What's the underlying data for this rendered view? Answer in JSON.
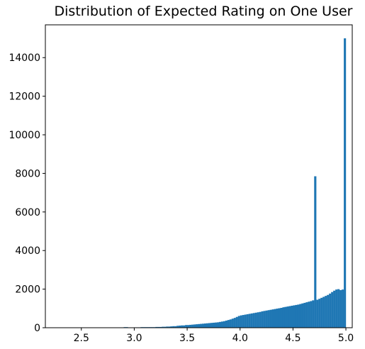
{
  "chart_data": {
    "type": "bar",
    "title": "Distribution of Expected Rating on One User",
    "xlabel": "",
    "ylabel": "",
    "xlim": [
      2.16,
      5.06
    ],
    "ylim": [
      0,
      15700
    ],
    "x_ticks": [
      2.5,
      3.0,
      3.5,
      4.0,
      4.5,
      5.0
    ],
    "x_tick_labels": [
      "2.5",
      "3.0",
      "3.5",
      "4.0",
      "4.5",
      "5.0"
    ],
    "y_ticks": [
      0,
      2000,
      4000,
      6000,
      8000,
      10000,
      12000,
      14000
    ],
    "y_tick_labels": [
      "0",
      "2000",
      "4000",
      "6000",
      "8000",
      "10000",
      "12000",
      "14000"
    ],
    "bar_color": "#1f77b4",
    "grid": false,
    "bin_width": 0.02,
    "bins_x": [
      2.5,
      2.52,
      2.54,
      2.56,
      2.58,
      2.6,
      2.62,
      2.64,
      2.66,
      2.68,
      2.7,
      2.72,
      2.74,
      2.76,
      2.78,
      2.8,
      2.82,
      2.84,
      2.86,
      2.88,
      2.9,
      2.92,
      2.94,
      2.96,
      2.98,
      3.0,
      3.02,
      3.04,
      3.06,
      3.08,
      3.1,
      3.12,
      3.14,
      3.16,
      3.18,
      3.2,
      3.22,
      3.24,
      3.26,
      3.28,
      3.3,
      3.32,
      3.34,
      3.36,
      3.38,
      3.4,
      3.42,
      3.44,
      3.46,
      3.48,
      3.5,
      3.52,
      3.54,
      3.56,
      3.58,
      3.6,
      3.62,
      3.64,
      3.66,
      3.68,
      3.7,
      3.72,
      3.74,
      3.76,
      3.78,
      3.8,
      3.82,
      3.84,
      3.86,
      3.88,
      3.9,
      3.92,
      3.94,
      3.96,
      3.98,
      4.0,
      4.02,
      4.04,
      4.06,
      4.08,
      4.1,
      4.12,
      4.14,
      4.16,
      4.18,
      4.2,
      4.22,
      4.24,
      4.26,
      4.28,
      4.3,
      4.32,
      4.34,
      4.36,
      4.38,
      4.4,
      4.42,
      4.44,
      4.46,
      4.48,
      4.5,
      4.52,
      4.54,
      4.56,
      4.58,
      4.6,
      4.62,
      4.64,
      4.66,
      4.68,
      4.7,
      4.72,
      4.74,
      4.76,
      4.78,
      4.8,
      4.82,
      4.84,
      4.86,
      4.88,
      4.9,
      4.92,
      4.94,
      4.96,
      4.98
    ],
    "values": [
      10,
      10,
      10,
      10,
      10,
      10,
      10,
      10,
      10,
      10,
      10,
      10,
      10,
      10,
      10,
      10,
      10,
      10,
      10,
      10,
      30,
      30,
      10,
      10,
      10,
      20,
      20,
      20,
      30,
      30,
      30,
      30,
      30,
      30,
      30,
      40,
      40,
      40,
      50,
      50,
      60,
      60,
      70,
      80,
      80,
      100,
      110,
      120,
      120,
      140,
      140,
      150,
      160,
      170,
      180,
      190,
      200,
      210,
      220,
      230,
      240,
      250,
      260,
      270,
      280,
      300,
      320,
      340,
      370,
      400,
      430,
      470,
      510,
      560,
      610,
      640,
      660,
      680,
      700,
      720,
      740,
      760,
      780,
      800,
      820,
      850,
      870,
      890,
      910,
      930,
      950,
      970,
      990,
      1010,
      1030,
      1060,
      1080,
      1100,
      1120,
      1140,
      1160,
      1180,
      1200,
      1230,
      1260,
      1290,
      1320,
      1350,
      1380,
      1420,
      7850,
      1450,
      1500,
      1550,
      1600,
      1650,
      1700,
      1770,
      1850,
      1920,
      1980,
      2000,
      1950,
      1980,
      15000
    ]
  }
}
